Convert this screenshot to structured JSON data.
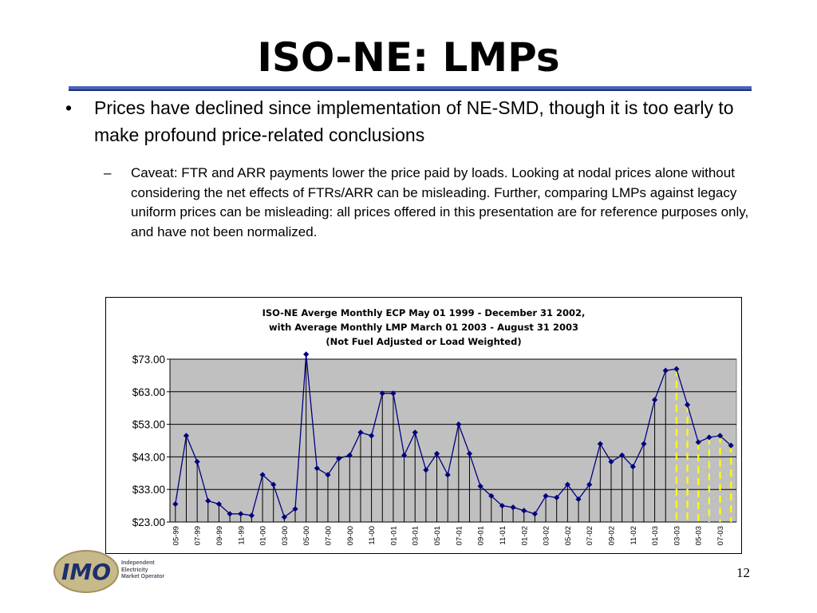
{
  "slide": {
    "title": "ISO-NE: LMPs",
    "bullet": "Prices have declined since implementation of NE-SMD, though it is too early to make profound price-related conclusions",
    "bullet_marker": "•",
    "sub_marker": "–",
    "sub_bullet": "Caveat: FTR and ARR payments lower the price paid by loads. Looking at nodal prices alone without considering the net effects of FTRs/ARR can be misleading.  Further, comparing LMPs against legacy uniform prices can be misleading:  all prices offered in this presentation are for reference purposes only, and have not been normalized.",
    "page_number": "12"
  },
  "logo": {
    "mark": "IMO",
    "line1": "Independent",
    "line2": "Electricity",
    "line3": "Market Operator"
  },
  "chart_data": {
    "type": "line",
    "title_lines": [
      "ISO-NE Averge Monthly ECP May 01 1999 -  December 31 2002,",
      "with Average Monthly LMP March 01 2003 - August 31 2003",
      "(Not Fuel Adjusted or Load Weighted)"
    ],
    "ylim": [
      23,
      73
    ],
    "y_ticks": [
      23,
      33,
      43,
      53,
      63,
      73
    ],
    "y_tick_labels": [
      "$23.00",
      "$33.00",
      "$43.00",
      "$53.00",
      "$63.00",
      "$73.00"
    ],
    "x": [
      "05-99",
      "06-99",
      "07-99",
      "08-99",
      "09-99",
      "10-99",
      "11-99",
      "12-99",
      "01-00",
      "02-00",
      "03-00",
      "04-00",
      "05-00",
      "06-00",
      "07-00",
      "08-00",
      "09-00",
      "10-00",
      "11-00",
      "12-00",
      "01-01",
      "02-01",
      "03-01",
      "04-01",
      "05-01",
      "06-01",
      "07-01",
      "08-01",
      "09-01",
      "10-01",
      "11-01",
      "12-01",
      "01-02",
      "02-02",
      "03-02",
      "04-02",
      "05-02",
      "06-02",
      "07-02",
      "08-02",
      "09-02",
      "10-02",
      "11-02",
      "12-02",
      "01-03",
      "02-03",
      "03-03",
      "04-03",
      "05-03",
      "06-03",
      "07-03",
      "08-03"
    ],
    "x_tick_labels": [
      "05-99",
      "07-99",
      "09-99",
      "11-99",
      "01-00",
      "03-00",
      "05-00",
      "07-00",
      "09-00",
      "11-00",
      "01-01",
      "03-01",
      "05-01",
      "07-01",
      "09-01",
      "11-01",
      "01-02",
      "03-02",
      "05-02",
      "07-02",
      "09-02",
      "11-02",
      "01-03",
      "03-03",
      "05-03",
      "07-03"
    ],
    "series": [
      {
        "values": [
          28.5,
          49.5,
          41.5,
          29.5,
          28.5,
          25.5,
          25.5,
          25,
          37.5,
          34.5,
          24.5,
          27,
          74.5,
          39.5,
          37.5,
          42.5,
          43.5,
          50.5,
          49.5,
          62.5,
          62.5,
          43.5,
          50.5,
          39,
          44,
          37.5,
          53,
          44,
          34,
          31,
          28,
          27.5,
          26.5,
          25.5,
          31,
          30.5,
          34.5,
          30,
          34.5,
          47,
          41.5,
          43.5,
          40,
          47,
          60.5,
          69.5,
          70,
          59,
          47.5,
          49,
          49.5,
          46.5
        ],
        "color": "#000080"
      }
    ],
    "highlight_range": [
      "03-03",
      "08-03"
    ],
    "highlight_color": "#ffff00",
    "plot_background": "#c0c0c0",
    "grid": true
  }
}
